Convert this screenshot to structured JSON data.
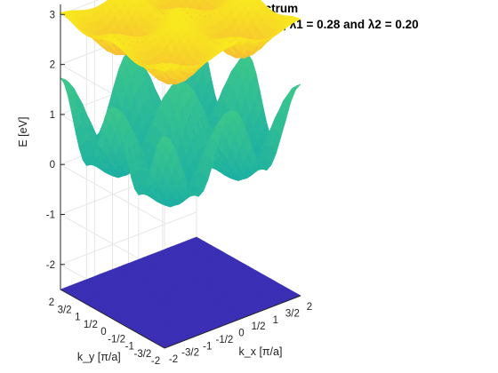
{
  "chart_data": {
    "type": "surface",
    "title": "Energy spectrum",
    "subtitle": "using parameters: t1 =1.0, t2 = -0.30, λ1 = 0.28 and λ2 = 0.20",
    "xlabel": "k_x [π/a]",
    "ylabel": "k_y [π/a]",
    "zlabel": "E [eV]",
    "xlim": [
      -2,
      2
    ],
    "ylim": [
      -2,
      2
    ],
    "zlim": [
      -2.5,
      3.2
    ],
    "ticks_k": [
      -2,
      -1.5,
      -1,
      -0.5,
      0,
      0.5,
      1,
      1.5,
      2
    ],
    "tick_labels_k": [
      "-2",
      "-3/2",
      "-1",
      "-1/2",
      "0",
      "1/2",
      "1",
      "3/2",
      "2"
    ],
    "ticks_e": [
      -2,
      -1,
      0,
      1,
      2,
      3
    ],
    "grid": true,
    "colormap": "parula",
    "surfaces": [
      {
        "name": "",
        "level": -2.5,
        "approx_range": [
          -2.5,
          -2.5
        ]
      },
      {
        "name": "",
        "level": 0.55,
        "approx_range": [
          -0.5,
          1.8
        ]
      },
      {
        "name": "",
        "level": 2.75,
        "approx_range": [
          2.2,
          3.2
        ]
      }
    ]
  },
  "colors": {
    "bottom": "#3b2fb5",
    "middle_low": "#14a9a9",
    "middle_high": "#3fc88a",
    "top_low": "#f6bc33",
    "top_high": "#f9f21a",
    "axis": "#262626",
    "grid": "#e6e6e6"
  }
}
